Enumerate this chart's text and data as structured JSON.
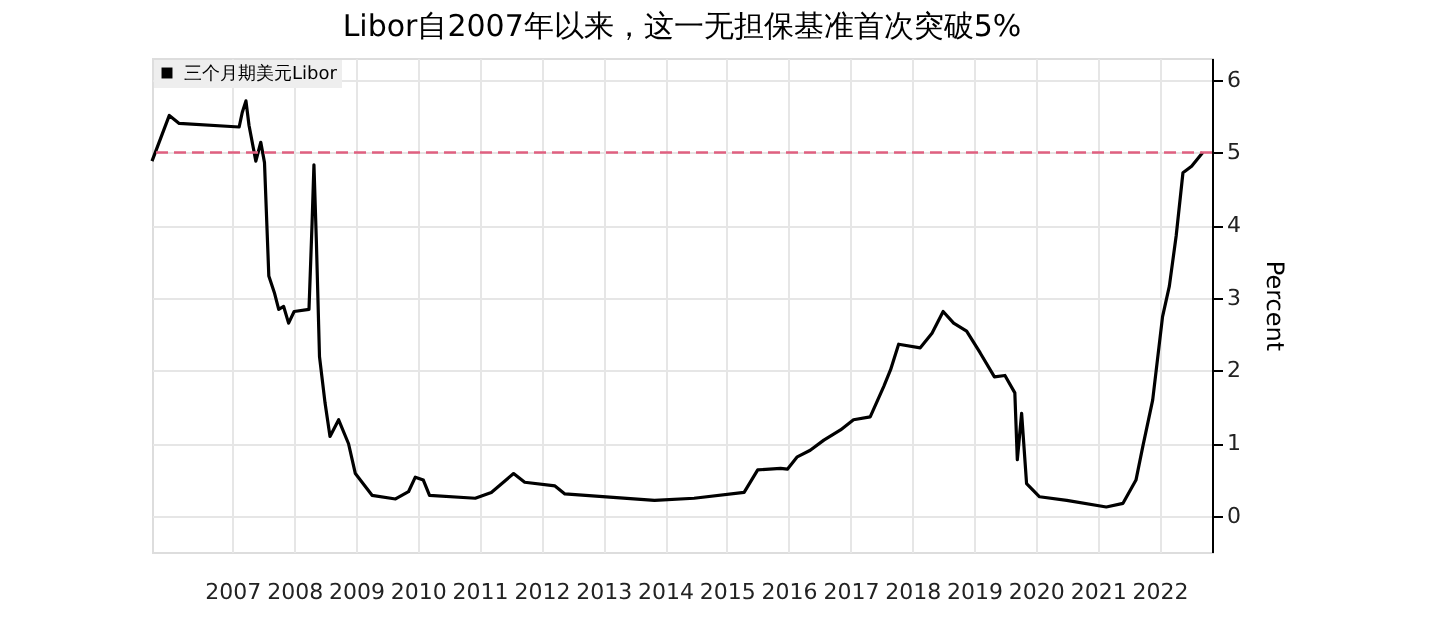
{
  "chart_data": {
    "type": "line",
    "title": "Libor自2007年以来，这一无担保基准首次突破5%",
    "ylabel": "Percent",
    "x": [
      2006.2,
      2006.48,
      2006.64,
      2007.61,
      2007.66,
      2007.72,
      2007.77,
      2007.88,
      2007.96,
      2008.02,
      2008.09,
      2008.18,
      2008.25,
      2008.33,
      2008.41,
      2008.5,
      2008.74,
      2008.79,
      2008.82,
      2008.86,
      2008.91,
      2009.0,
      2009.08,
      2009.22,
      2009.38,
      2009.49,
      2009.76,
      2010.14,
      2010.35,
      2010.46,
      2010.59,
      2010.69,
      2011.43,
      2011.69,
      2012.05,
      2012.23,
      2012.72,
      2012.88,
      2014.33,
      2014.97,
      2015.78,
      2016.0,
      2016.37,
      2016.48,
      2016.64,
      2016.85,
      2017.07,
      2017.34,
      2017.55,
      2017.82,
      2018.04,
      2018.15,
      2018.28,
      2018.63,
      2018.82,
      2019.0,
      2019.17,
      2019.38,
      2019.6,
      2019.83,
      2020.0,
      2020.16,
      2020.2,
      2020.27,
      2020.35,
      2020.56,
      2021.0,
      2021.64,
      2021.91,
      2022.12,
      2022.23,
      2022.39,
      2022.55,
      2022.66,
      2022.77,
      2022.88,
      2023.02,
      2023.2
    ],
    "series": [
      {
        "name": "三个月期美元Libor",
        "color": "#000000",
        "values": [
          4.88,
          5.51,
          5.4,
          5.35,
          5.55,
          5.71,
          5.37,
          4.88,
          5.14,
          4.86,
          3.3,
          3.07,
          2.84,
          2.88,
          2.65,
          2.81,
          2.84,
          4.03,
          4.83,
          3.76,
          2.19,
          1.55,
          1.09,
          1.32,
          0.99,
          0.58,
          0.28,
          0.23,
          0.33,
          0.53,
          0.49,
          0.28,
          0.24,
          0.32,
          0.58,
          0.46,
          0.41,
          0.3,
          0.21,
          0.24,
          0.32,
          0.63,
          0.65,
          0.64,
          0.81,
          0.9,
          1.04,
          1.18,
          1.32,
          1.36,
          1.78,
          2.01,
          2.36,
          2.31,
          2.51,
          2.81,
          2.65,
          2.54,
          2.24,
          1.91,
          1.93,
          1.69,
          0.77,
          1.41,
          0.44,
          0.26,
          0.21,
          0.12,
          0.17,
          0.49,
          0.95,
          1.59,
          2.74,
          3.16,
          3.85,
          4.72,
          4.81,
          5.0
        ]
      }
    ],
    "xlim": [
      2006.2,
      2023.35
    ],
    "xticks": [
      {
        "value": 2007.5,
        "label": "2007"
      },
      {
        "value": 2008.5,
        "label": "2008"
      },
      {
        "value": 2009.5,
        "label": "2009"
      },
      {
        "value": 2010.5,
        "label": "2010"
      },
      {
        "value": 2011.5,
        "label": "2011"
      },
      {
        "value": 2012.5,
        "label": "2012"
      },
      {
        "value": 2013.5,
        "label": "2013"
      },
      {
        "value": 2014.5,
        "label": "2014"
      },
      {
        "value": 2015.5,
        "label": "2015"
      },
      {
        "value": 2016.5,
        "label": "2016"
      },
      {
        "value": 2017.5,
        "label": "2017"
      },
      {
        "value": 2018.5,
        "label": "2018"
      },
      {
        "value": 2019.5,
        "label": "2019"
      },
      {
        "value": 2020.5,
        "label": "2020"
      },
      {
        "value": 2021.5,
        "label": "2021"
      },
      {
        "value": 2022.5,
        "label": "2022"
      }
    ],
    "ylim": [
      -0.5,
      6.3
    ],
    "yticks": [
      0,
      1,
      2,
      3,
      4,
      5,
      6
    ],
    "ref_lines": [
      {
        "axis": "y",
        "value": 5,
        "color": "#e06080",
        "line_style": "dashed"
      }
    ],
    "grid": true,
    "legend": "top left",
    "line_style": "solid",
    "marker": "none"
  }
}
